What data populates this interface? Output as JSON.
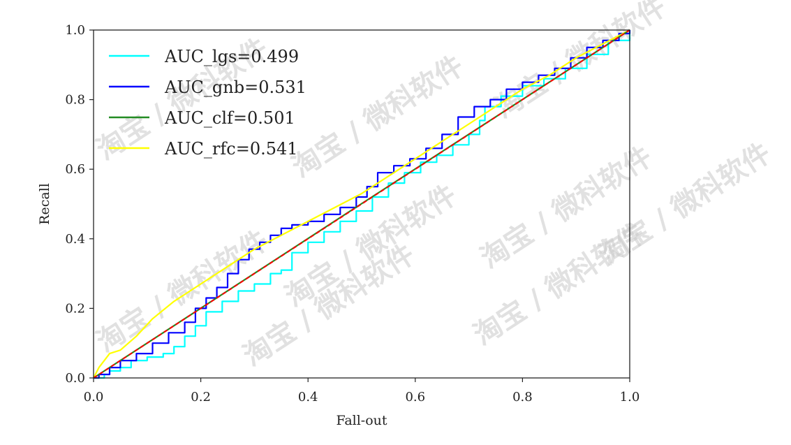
{
  "chart_data": {
    "type": "line",
    "title": "",
    "xlabel": "Fall-out",
    "ylabel": "Recall",
    "xlim": [
      0.0,
      1.0
    ],
    "ylim": [
      0.0,
      1.0
    ],
    "xticks": [
      "0.0",
      "0.2",
      "0.4",
      "0.6",
      "0.8",
      "1.0"
    ],
    "yticks": [
      "0.0",
      "0.2",
      "0.4",
      "0.6",
      "0.8",
      "1.0"
    ],
    "grid": false,
    "legend_position": "top-left",
    "series": [
      {
        "name": "AUC_lgs=0.499",
        "color": "#00ffff",
        "step": true,
        "x": [
          0.0,
          0.01,
          0.02,
          0.03,
          0.05,
          0.07,
          0.1,
          0.13,
          0.15,
          0.17,
          0.19,
          0.21,
          0.24,
          0.27,
          0.3,
          0.33,
          0.35,
          0.37,
          0.4,
          0.43,
          0.46,
          0.49,
          0.52,
          0.55,
          0.58,
          0.61,
          0.64,
          0.67,
          0.7,
          0.72,
          0.73,
          0.76,
          0.8,
          0.84,
          0.88,
          0.92,
          0.96,
          1.0
        ],
        "y": [
          0.0,
          0.0,
          0.01,
          0.02,
          0.03,
          0.05,
          0.06,
          0.07,
          0.09,
          0.12,
          0.15,
          0.19,
          0.22,
          0.25,
          0.27,
          0.3,
          0.31,
          0.36,
          0.39,
          0.42,
          0.45,
          0.48,
          0.52,
          0.56,
          0.59,
          0.62,
          0.64,
          0.67,
          0.7,
          0.74,
          0.78,
          0.81,
          0.84,
          0.86,
          0.89,
          0.93,
          0.97,
          1.0
        ]
      },
      {
        "name": "AUC_gnb=0.531",
        "color": "#0000ff",
        "step": true,
        "x": [
          0.0,
          0.01,
          0.03,
          0.05,
          0.08,
          0.11,
          0.14,
          0.17,
          0.19,
          0.21,
          0.23,
          0.25,
          0.27,
          0.29,
          0.31,
          0.33,
          0.35,
          0.37,
          0.4,
          0.43,
          0.46,
          0.49,
          0.51,
          0.53,
          0.56,
          0.59,
          0.62,
          0.65,
          0.68,
          0.71,
          0.74,
          0.77,
          0.8,
          0.83,
          0.86,
          0.89,
          0.92,
          0.95,
          0.98,
          1.0
        ],
        "y": [
          0.0,
          0.01,
          0.03,
          0.05,
          0.07,
          0.1,
          0.13,
          0.16,
          0.2,
          0.23,
          0.26,
          0.3,
          0.34,
          0.37,
          0.39,
          0.41,
          0.43,
          0.44,
          0.45,
          0.47,
          0.49,
          0.52,
          0.55,
          0.59,
          0.61,
          0.63,
          0.66,
          0.7,
          0.75,
          0.78,
          0.8,
          0.83,
          0.85,
          0.87,
          0.89,
          0.92,
          0.95,
          0.97,
          0.99,
          1.0
        ]
      },
      {
        "name": "AUC_clf=0.501",
        "color": "#228b22",
        "step": false,
        "x": [
          0.0,
          0.25,
          0.5,
          0.75,
          1.0
        ],
        "y": [
          0.0,
          0.2505,
          0.501,
          0.7505,
          1.0
        ]
      },
      {
        "name": "AUC_rfc=0.541",
        "color": "#ffff00",
        "step": false,
        "x": [
          0.0,
          0.01,
          0.02,
          0.03,
          0.05,
          0.08,
          0.11,
          0.15,
          0.2,
          0.25,
          0.3,
          0.35,
          0.4,
          0.45,
          0.5,
          0.55,
          0.6,
          0.65,
          0.7,
          0.75,
          0.8,
          0.85,
          0.9,
          0.95,
          1.0
        ],
        "y": [
          0.0,
          0.03,
          0.05,
          0.07,
          0.08,
          0.12,
          0.17,
          0.22,
          0.27,
          0.32,
          0.37,
          0.41,
          0.45,
          0.49,
          0.53,
          0.58,
          0.63,
          0.68,
          0.73,
          0.78,
          0.83,
          0.87,
          0.92,
          0.96,
          1.0
        ]
      }
    ],
    "reference_line": {
      "color": "#ff0000",
      "dash": true,
      "x": [
        0.0,
        1.0
      ],
      "y": [
        0.0,
        1.0
      ]
    }
  },
  "watermark": {
    "text": "淘宝 / 微科软件",
    "color": "#c9c9c9"
  }
}
